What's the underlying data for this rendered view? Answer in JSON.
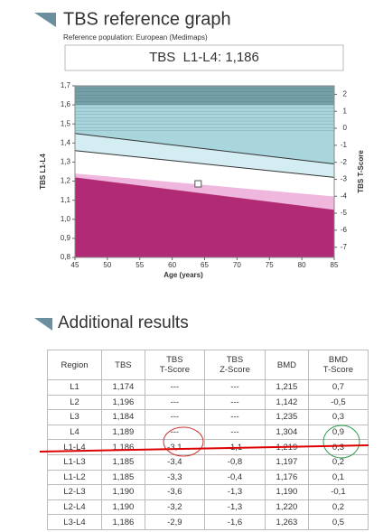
{
  "header": {
    "title": "TBS reference graph",
    "subtitle": "Reference population: European (Medimaps)",
    "result": "TBS  L1-L4: 1,186"
  },
  "chart_data": {
    "type": "scatter",
    "xlabel": "Age (years)",
    "ylabel": "TBS L1-L4",
    "y2label": "TBS T-Score",
    "xlim": [
      45,
      85
    ],
    "xticks": [
      45,
      50,
      55,
      60,
      65,
      70,
      75,
      80,
      85
    ],
    "ylim": [
      0.8,
      1.7
    ],
    "yticks": [
      {
        "value": 0.8,
        "label": "0,8"
      },
      {
        "value": 0.9,
        "label": "0,9"
      },
      {
        "value": 1.0,
        "label": "1,0"
      },
      {
        "value": 1.1,
        "label": "1,1"
      },
      {
        "value": 1.2,
        "label": "1,2"
      },
      {
        "value": 1.3,
        "label": "1,3"
      },
      {
        "value": 1.4,
        "label": "1,4"
      },
      {
        "value": 1.5,
        "label": "1,5"
      },
      {
        "value": 1.6,
        "label": "1,6"
      },
      {
        "value": 1.7,
        "label": "1,7"
      }
    ],
    "y2lim": [
      -7.6,
      2.5
    ],
    "y2ticks": [
      2,
      1,
      0,
      -1,
      -2,
      -3,
      -4,
      -5,
      -6,
      -7
    ],
    "bounds": [
      {
        "x": [
          45,
          85
        ],
        "values": [
          1.45,
          1.29
        ]
      },
      {
        "x": [
          45,
          85
        ],
        "values": [
          1.36,
          1.22
        ]
      },
      {
        "x": [
          45,
          85
        ],
        "values": [
          1.24,
          1.12
        ]
      },
      {
        "x": [
          45,
          85
        ],
        "values": [
          1.22,
          1.05
        ]
      }
    ],
    "zone_colors": [
      "#a9d6dc",
      "#d3edf2",
      "#ffffff",
      "#efb6de",
      "#b12a75"
    ],
    "top_band": {
      "range": [
        1.6,
        1.7
      ],
      "color": "#6f9aa2"
    },
    "series": [
      {
        "x": [
          64
        ],
        "values": [
          1.186
        ],
        "color": "#ffffff"
      }
    ]
  },
  "section_title": "Additional results",
  "table": {
    "header": [
      "Region",
      "TBS",
      "TBS\nT-Score",
      "TBS\nZ-Score",
      "BMD",
      "BMD\nT-Score"
    ],
    "rows": [
      [
        "L1",
        "1,174",
        "---",
        "---",
        "1,215",
        "0,7"
      ],
      [
        "L2",
        "1,196",
        "---",
        "---",
        "1,142",
        "-0,5"
      ],
      [
        "L3",
        "1,184",
        "---",
        "---",
        "1,235",
        "0,3"
      ],
      [
        "L4",
        "1,189",
        "---",
        "---",
        "1,304",
        "0,9"
      ],
      [
        "L1-L4",
        "1,186",
        "-3,1",
        "-1,1",
        "1,219",
        "0,3"
      ],
      [
        "L1-L3",
        "1,185",
        "-3,4",
        "-0,8",
        "1,197",
        "0,2"
      ],
      [
        "L1-L2",
        "1,185",
        "-3,3",
        "-0,4",
        "1,176",
        "0,1"
      ],
      [
        "L2-L3",
        "1,190",
        "-3,6",
        "-1,3",
        "1,190",
        "-0,1"
      ],
      [
        "L2-L4",
        "1,190",
        "-3,2",
        "-1,3",
        "1,220",
        "0,2"
      ],
      [
        "L3-L4",
        "1,186",
        "-2,9",
        "-1,6",
        "1,263",
        "0,5"
      ]
    ]
  }
}
